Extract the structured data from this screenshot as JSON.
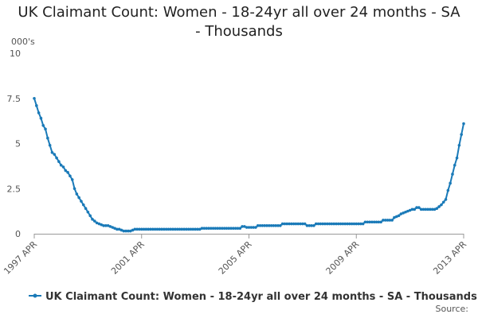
{
  "chart_data": {
    "type": "line",
    "title": "UK Claimant Count: Women - 18-24yr all over 24 months - SA - Thousands",
    "y_label": "000's",
    "source": "Source:",
    "categories": [
      "1997 APR",
      null,
      null,
      null,
      null,
      null,
      null,
      null,
      null,
      null,
      null,
      null,
      null,
      null,
      null,
      null,
      null,
      null,
      null,
      null,
      null,
      null,
      null,
      null,
      null,
      null,
      null,
      null,
      null,
      null,
      null,
      null,
      null,
      null,
      null,
      null,
      null,
      null,
      null,
      null,
      null,
      null,
      null,
      null,
      null,
      null,
      null,
      null,
      "2001 APR",
      null,
      null,
      null,
      null,
      null,
      null,
      null,
      null,
      null,
      null,
      null,
      null,
      null,
      null,
      null,
      null,
      null,
      null,
      null,
      null,
      null,
      null,
      null,
      null,
      null,
      null,
      null,
      null,
      null,
      null,
      null,
      null,
      null,
      null,
      null,
      null,
      null,
      null,
      null,
      null,
      null,
      null,
      null,
      null,
      null,
      null,
      null,
      "2005 APR",
      null,
      null,
      null,
      null,
      null,
      null,
      null,
      null,
      null,
      null,
      null,
      null,
      null,
      null,
      null,
      null,
      null,
      null,
      null,
      null,
      null,
      null,
      null,
      null,
      null,
      null,
      null,
      null,
      null,
      null,
      null,
      null,
      null,
      null,
      null,
      null,
      null,
      null,
      null,
      null,
      null,
      null,
      null,
      null,
      null,
      null,
      null,
      "2009 APR",
      null,
      null,
      null,
      null,
      null,
      null,
      null,
      null,
      null,
      null,
      null,
      null,
      null,
      null,
      null,
      null,
      null,
      null,
      null,
      null,
      null,
      null,
      null,
      null,
      null,
      null,
      null,
      null,
      null,
      null,
      null,
      null,
      null,
      null,
      null,
      null,
      null,
      null,
      null,
      null,
      null,
      null,
      null,
      null,
      null,
      null,
      null,
      "2013 APR"
    ],
    "series": [
      {
        "name": "UK Claimant Count: Women - 18-24yr all over 24 months - SA - Thousands",
        "color": "#1a7ab8",
        "values": [
          7.5,
          7.1,
          6.7,
          6.4,
          6.0,
          5.8,
          5.3,
          4.9,
          4.5,
          4.4,
          4.2,
          4.0,
          3.8,
          3.7,
          3.5,
          3.4,
          3.2,
          3.0,
          2.5,
          2.2,
          2.0,
          1.8,
          1.6,
          1.4,
          1.2,
          1.0,
          0.8,
          0.7,
          0.6,
          0.55,
          0.5,
          0.45,
          0.45,
          0.45,
          0.4,
          0.35,
          0.3,
          0.25,
          0.25,
          0.2,
          0.15,
          0.15,
          0.15,
          0.15,
          0.2,
          0.25,
          0.25,
          0.25,
          0.25,
          0.25,
          0.25,
          0.25,
          0.25,
          0.25,
          0.25,
          0.25,
          0.25,
          0.25,
          0.25,
          0.25,
          0.25,
          0.25,
          0.25,
          0.25,
          0.25,
          0.25,
          0.25,
          0.25,
          0.25,
          0.25,
          0.25,
          0.25,
          0.25,
          0.25,
          0.25,
          0.3,
          0.3,
          0.3,
          0.3,
          0.3,
          0.3,
          0.3,
          0.3,
          0.3,
          0.3,
          0.3,
          0.3,
          0.3,
          0.3,
          0.3,
          0.3,
          0.3,
          0.3,
          0.4,
          0.4,
          0.35,
          0.35,
          0.35,
          0.35,
          0.35,
          0.45,
          0.45,
          0.45,
          0.45,
          0.45,
          0.45,
          0.45,
          0.45,
          0.45,
          0.45,
          0.45,
          0.55,
          0.55,
          0.55,
          0.55,
          0.55,
          0.55,
          0.55,
          0.55,
          0.55,
          0.55,
          0.55,
          0.45,
          0.45,
          0.45,
          0.45,
          0.55,
          0.55,
          0.55,
          0.55,
          0.55,
          0.55,
          0.55,
          0.55,
          0.55,
          0.55,
          0.55,
          0.55,
          0.55,
          0.55,
          0.55,
          0.55,
          0.55,
          0.55,
          0.55,
          0.55,
          0.55,
          0.55,
          0.65,
          0.65,
          0.65,
          0.65,
          0.65,
          0.65,
          0.65,
          0.65,
          0.75,
          0.75,
          0.75,
          0.75,
          0.75,
          0.9,
          0.95,
          1.0,
          1.1,
          1.15,
          1.2,
          1.25,
          1.3,
          1.35,
          1.35,
          1.45,
          1.45,
          1.35,
          1.35,
          1.35,
          1.35,
          1.35,
          1.35,
          1.35,
          1.4,
          1.5,
          1.6,
          1.75,
          1.9,
          2.4,
          2.8,
          3.3,
          3.8,
          4.2,
          4.9,
          5.5,
          6.1
        ]
      }
    ],
    "ylim": [
      0,
      10
    ],
    "yticks": [
      0,
      2.5,
      5,
      7.5,
      10
    ],
    "grid": false
  }
}
